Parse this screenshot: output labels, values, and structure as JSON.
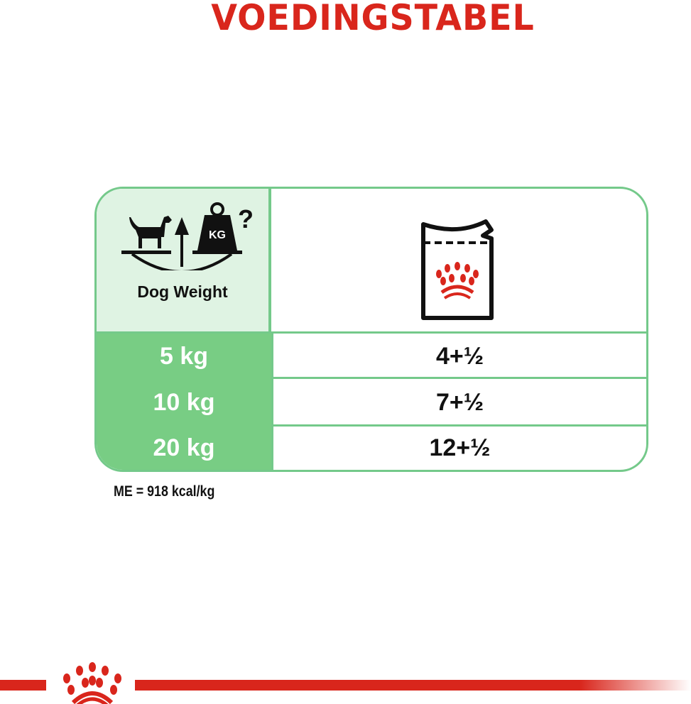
{
  "title": "VOEDINGSTABEL",
  "header": {
    "left_label": "Dog Weight",
    "left_icon": "dog-weight-scale-icon",
    "right_icon": "wet-food-pouch-icon"
  },
  "rows": [
    {
      "weight": "5 kg",
      "amount": "4+½"
    },
    {
      "weight": "10 kg",
      "amount": "7+½"
    },
    {
      "weight": "20 kg",
      "amount": "12+½"
    }
  ],
  "footnote": "ME = 918 kcal/kg",
  "colors": {
    "brand_red": "#d9261c",
    "green": "#78cd84",
    "light_green": "#dff3e3"
  }
}
